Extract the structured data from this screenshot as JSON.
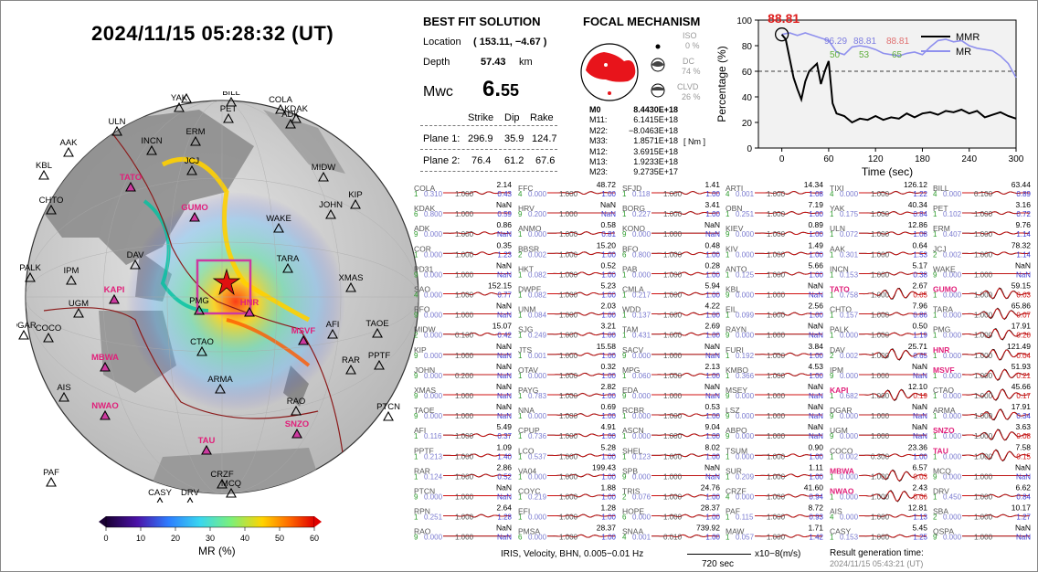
{
  "header": {
    "datetime": "2024/11/15  05:28:32 (UT)"
  },
  "solution": {
    "title": "BEST FIT SOLUTION",
    "location_label": "Location",
    "location_value": "( 153.11, −4.67 )",
    "depth_label": "Depth",
    "depth_value": "57.43",
    "depth_unit": "km",
    "mw_label": "Mwc",
    "mw_int": "6.",
    "mw_dec": "55",
    "table_headers": [
      "Strike",
      "Dip",
      "Rake"
    ],
    "planes": [
      {
        "label": "Plane 1:",
        "strike": "296.9",
        "dip": "35.9",
        "rake": "124.7"
      },
      {
        "label": "Plane 2:",
        "strike": "76.4",
        "dip": "61.2",
        "rake": "67.6"
      }
    ]
  },
  "focal": {
    "title": "FOCAL MECHANISM",
    "iso_label": "ISO",
    "iso_value": "0 %",
    "dc_label": "DC",
    "dc_value": "74 %",
    "clvd_label": "CLVD",
    "clvd_value": "26 %",
    "tensor_labels": [
      "M0",
      "M11:",
      "M22:",
      "M33:",
      "M12:",
      "M13:",
      "M23:"
    ],
    "tensor_values": [
      "8.4430E+18",
      "6.1415E+18",
      "−8.0463E+18",
      "1.8571E+18",
      "3.6915E+18",
      "1.9233E+18",
      "9.2735E+17"
    ],
    "tensor_unit": "[ Nm ]",
    "colors": {
      "beachball": "#e8141b"
    }
  },
  "chart_data": {
    "type": "line",
    "xlabel": "Time (sec)",
    "ylabel": "Percentage (%)",
    "xlim": [
      -30,
      300
    ],
    "ylim": [
      0,
      100
    ],
    "xticks": [
      0,
      60,
      120,
      180,
      240,
      300
    ],
    "yticks": [
      0,
      20,
      40,
      60,
      80,
      100
    ],
    "threshold": 60,
    "peak_label": "88.81",
    "legend": {
      "position": "top-right",
      "entries": [
        "MMR",
        "MR"
      ]
    },
    "annotations": {
      "blue": [
        "96.29",
        "88.81"
      ],
      "red": [
        "88.81"
      ],
      "green": [
        "50",
        "53",
        "65"
      ]
    },
    "series": [
      {
        "name": "MMR",
        "color": "#000000",
        "x": [
          0,
          5,
          10,
          15,
          20,
          25,
          30,
          35,
          40,
          45,
          50,
          55,
          60,
          65,
          70,
          80,
          90,
          100,
          110,
          120,
          130,
          140,
          150,
          160,
          170,
          180,
          190,
          200,
          210,
          220,
          230,
          240,
          250,
          260,
          270,
          280,
          290,
          300
        ],
        "y": [
          88.8,
          85,
          70,
          55,
          46,
          38,
          52,
          60,
          63,
          66,
          50,
          60,
          68,
          35,
          27,
          25,
          20,
          23,
          22,
          25,
          22,
          24,
          23,
          27,
          24,
          27,
          28,
          26,
          29,
          28,
          30,
          27,
          29,
          24,
          26,
          28,
          25,
          23
        ]
      },
      {
        "name": "MR",
        "color": "#8f90ee",
        "x": [
          0,
          10,
          20,
          30,
          40,
          50,
          60,
          70,
          80,
          90,
          100,
          110,
          120,
          130,
          140,
          150,
          160,
          170,
          180,
          190,
          200,
          210,
          220,
          230,
          240,
          250,
          260,
          270,
          280,
          290,
          300
        ],
        "y": [
          88.8,
          90,
          88,
          90,
          88,
          86,
          84,
          75,
          73,
          79,
          80,
          79,
          77,
          74,
          73,
          72,
          74,
          75,
          73,
          79,
          84,
          85,
          83,
          84,
          80,
          78,
          77,
          76,
          72,
          66,
          55
        ]
      }
    ]
  },
  "globe": {
    "stations": [
      "TIXI",
      "BILL",
      "YAK",
      "PET",
      "COLA",
      "ADK",
      "KDAK",
      "ULN",
      "ERM",
      "AAK",
      "INCN",
      "JCJ",
      "KBL",
      "TATO",
      "MIDW",
      "CHTO",
      "GUMO",
      "WAKE",
      "JOHN",
      "KIP",
      "DAV",
      "PALK",
      "IPM",
      "TARA",
      "XMAS",
      "KAPI",
      "UGM",
      "PMG",
      "HNR",
      "DGAR",
      "COCO",
      "TAOE",
      "CTAO",
      "MSVF",
      "AFI",
      "MBWA",
      "RAR",
      "PPTF",
      "ARMA",
      "NWAO",
      "RAO",
      "PTCN",
      "AIS",
      "TAU",
      "SNZO",
      "CRZF",
      "PAF",
      "MCQ",
      "CASY",
      "DRV",
      "MAW",
      "SBA",
      "QSPA"
    ],
    "highlight": [
      "TATO",
      "GUMO",
      "KAPI",
      "HNR",
      "MSVF",
      "MBWA",
      "NWAO",
      "TAU",
      "SNZO"
    ],
    "colorbar_label": "MR (%)",
    "colorbar_ticks": [
      "0",
      "10",
      "20",
      "30",
      "40",
      "50",
      "60"
    ]
  },
  "waveforms": {
    "columns": [
      [
        [
          "COLA",
          "2.14",
          "1",
          "0.310",
          "1.000",
          "0.43"
        ],
        [
          "KDAK",
          "NaN",
          "6",
          "0.800",
          "1.000",
          "0.59"
        ],
        [
          "ADK",
          "0.86",
          "9",
          "0.000",
          "1.000",
          "NaN"
        ],
        [
          "COR",
          "0.35",
          "1",
          "0.000",
          "1.000",
          "1.23"
        ],
        [
          "PD31",
          "NaN",
          "9",
          "0.000",
          "1.000",
          "NaN"
        ],
        [
          "SAO",
          "152.15",
          "4",
          "0.000",
          "1.000",
          "0.77"
        ],
        [
          "PFO",
          "NaN",
          "9",
          "0.000",
          "1.000",
          "NaN"
        ],
        [
          "MIDW",
          "15.07",
          "2",
          "0.000",
          "0.100",
          "0.42"
        ],
        [
          "KIP",
          "NaN",
          "9",
          "0.000",
          "1.000",
          "NaN"
        ],
        [
          "JOHN",
          "NaN",
          "9",
          "0.000",
          "0.200",
          "NaN"
        ],
        [
          "XMAS",
          "NaN",
          "9",
          "0.000",
          "1.000",
          "NaN"
        ],
        [
          "TAOE",
          "NaN",
          "9",
          "0.000",
          "1.000",
          "NaN"
        ],
        [
          "AFI",
          "5.49",
          "1",
          "0.116",
          "1.000",
          "0.37"
        ],
        [
          "PPTF",
          "1.09",
          "1",
          "0.213",
          "1.000",
          "1.40"
        ],
        [
          "RAR",
          "2.86",
          "1",
          "0.124",
          "1.000",
          "0.52"
        ],
        [
          "PTCN",
          "NaN",
          "9",
          "0.000",
          "1.000",
          "NaN"
        ],
        [
          "RPN",
          "2.64",
          "1",
          "0.251",
          "1.000",
          "1.28"
        ],
        [
          "RAO",
          "NaN",
          "9",
          "0.000",
          "1.000",
          "NaN"
        ]
      ],
      [
        [
          "FFC",
          "48.72",
          "4",
          "0.000",
          "1.000",
          "1.00"
        ],
        [
          "HRV",
          "NaN",
          "9",
          "0.200",
          "1.000",
          "NaN"
        ],
        [
          "ANMO",
          "0.58",
          "1",
          "0.000",
          "1.000",
          "0.81"
        ],
        [
          "BBSR",
          "15.20",
          "2",
          "0.002",
          "1.000",
          "1.00"
        ],
        [
          "HKT",
          "0.52",
          "1",
          "0.082",
          "1.000",
          "1.00"
        ],
        [
          "DWPF",
          "5.23",
          "1",
          "0.082",
          "1.000",
          "1.00"
        ],
        [
          "UNM",
          "2.03",
          "1",
          "0.084",
          "1.000",
          "1.00"
        ],
        [
          "SJG",
          "3.21",
          "1",
          "0.249",
          "1.000",
          "1.00"
        ],
        [
          "JTS",
          "15.58",
          "1",
          "0.001",
          "1.000",
          "1.00"
        ],
        [
          "OTAV",
          "0.32",
          "1",
          "0.000",
          "1.000",
          "1.00"
        ],
        [
          "PAYG",
          "2.82",
          "1",
          "0.783",
          "1.000",
          "1.00"
        ],
        [
          "NNA",
          "0.69",
          "1",
          "0.000",
          "1.000",
          "1.00"
        ],
        [
          "CPUP",
          "4.91",
          "1",
          "0.736",
          "1.000",
          "1.00"
        ],
        [
          "LCO",
          "5.28",
          "1",
          "0.537",
          "1.000",
          "1.00"
        ],
        [
          "VA04",
          "199.43",
          "1",
          "0.000",
          "1.000",
          "1.00"
        ],
        [
          "COYC",
          "1.88",
          "1",
          "0.219",
          "1.000",
          "1.00"
        ],
        [
          "EFI",
          "1.28",
          "1",
          "0.000",
          "1.000",
          "1.00"
        ],
        [
          "PMSA",
          "28.37",
          "6",
          "0.000",
          "1.000",
          "1.00"
        ]
      ],
      [
        [
          "SFJD",
          "1.41",
          "1",
          "0.118",
          "1.000",
          "1.00"
        ],
        [
          "BORG",
          "3.41",
          "1",
          "0.227",
          "1.000",
          "1.00"
        ],
        [
          "KONO",
          "NaN",
          "9",
          "0.000",
          "1.000",
          "NaN"
        ],
        [
          "BFO",
          "0.48",
          "6",
          "0.800",
          "1.000",
          "1.00"
        ],
        [
          "PAB",
          "0.28",
          "1",
          "0.000",
          "1.000",
          "1.00"
        ],
        [
          "CMLA",
          "5.94",
          "1",
          "0.217",
          "1.000",
          "1.00"
        ],
        [
          "WDD",
          "4.22",
          "1",
          "0.137",
          "1.000",
          "1.00"
        ],
        [
          "TAM",
          "2.69",
          "1",
          "0.431",
          "1.000",
          "1.00"
        ],
        [
          "SACV",
          "NaN",
          "9",
          "0.000",
          "1.000",
          "NaN"
        ],
        [
          "MPG",
          "2.13",
          "1",
          "0.060",
          "1.000",
          "1.00"
        ],
        [
          "EDA",
          "NaN",
          "9",
          "0.000",
          "1.000",
          "NaN"
        ],
        [
          "RCBR",
          "0.53",
          "1",
          "0.000",
          "1.000",
          "1.00"
        ],
        [
          "ASCN",
          "9.04",
          "1",
          "0.000",
          "1.000",
          "1.00"
        ],
        [
          "SHEL",
          "8.02",
          "1",
          "0.123",
          "1.000",
          "1.00"
        ],
        [
          "SPB",
          "NaN",
          "9",
          "0.000",
          "1.000",
          "NaN"
        ],
        [
          "TRIS",
          "24.76",
          "2",
          "0.076",
          "1.000",
          "1.00"
        ],
        [
          "HOPE",
          "28.37",
          "6",
          "0.000",
          "1.000",
          "1.00"
        ],
        [
          "SNAA",
          "739.92",
          "4",
          "0.001",
          "0.010",
          "1.00"
        ]
      ],
      [
        [
          "ARTI",
          "14.34",
          "4",
          "0.001",
          "1.000",
          "1.08"
        ],
        [
          "OBN",
          "7.19",
          "1",
          "0.251",
          "1.000",
          "1.00"
        ],
        [
          "KIEV",
          "0.89",
          "9",
          "0.000",
          "1.000",
          "1.00"
        ],
        [
          "KIV",
          "1.49",
          "1",
          "0.000",
          "1.000",
          "1.00"
        ],
        [
          "ANTO",
          "5.66",
          "1",
          "0.125",
          "1.000",
          "1.00"
        ],
        [
          "KBL",
          "NaN",
          "9",
          "0.000",
          "1.000",
          "NaN"
        ],
        [
          "EIL",
          "2.56",
          "1",
          "0.099",
          "1.000",
          "1.00"
        ],
        [
          "RAYN",
          "NaN",
          "9",
          "0.000",
          "1.000",
          "NaN"
        ],
        [
          "FURI",
          "3.84",
          "1",
          "0.192",
          "1.000",
          "1.00"
        ],
        [
          "KMBO",
          "4.53",
          "1",
          "0.366",
          "1.000",
          "1.00"
        ],
        [
          "MSEY",
          "NaN",
          "9",
          "0.000",
          "1.000",
          "NaN"
        ],
        [
          "LSZ",
          "NaN",
          "9",
          "0.000",
          "1.000",
          "NaN"
        ],
        [
          "ABPO",
          "NaN",
          "9",
          "0.000",
          "1.000",
          "NaN"
        ],
        [
          "TSUM",
          "0.90",
          "1",
          "0.000",
          "1.000",
          "1.00"
        ],
        [
          "SUR",
          "1.11",
          "1",
          "0.209",
          "1.000",
          "1.00"
        ],
        [
          "CRZF",
          "41.60",
          "4",
          "0.000",
          "1.000",
          "0.94"
        ],
        [
          "PAF",
          "8.72",
          "1",
          "0.115",
          "1.000",
          "0.93"
        ],
        [
          "MAW",
          "1.71",
          "1",
          "0.057",
          "1.000",
          "1.42"
        ]
      ],
      [
        [
          "TIXI",
          "126.12",
          "4",
          "0.000",
          "1.000",
          "1.22"
        ],
        [
          "YAK",
          "40.34",
          "1",
          "0.175",
          "1.000",
          "0.84"
        ],
        [
          "ULN",
          "12.86",
          "1",
          "0.072",
          "1.000",
          "1.08"
        ],
        [
          "AAK",
          "0.64",
          "1",
          "0.301",
          "1.000",
          "1.53"
        ],
        [
          "INCN",
          "5.17",
          "1",
          "0.153",
          "1.000",
          "0.38"
        ],
        [
          "TATO",
          "2.67",
          "1",
          "0.758",
          "1.000",
          "0.05"
        ],
        [
          "CHTO",
          "7.96",
          "1",
          "0.157",
          "1.000",
          "0.86"
        ],
        [
          "PALK",
          "0.50",
          "1",
          "0.000",
          "1.000",
          "1.19"
        ],
        [
          "DAV",
          "25.71",
          "2",
          "0.002",
          "1.000",
          "0.65"
        ],
        [
          "IPM",
          "NaN",
          "9",
          "0.000",
          "1.000",
          "NaN"
        ],
        [
          "KAPI",
          "12.10",
          "1",
          "0.682",
          "1.000",
          "0.19"
        ],
        [
          "DGAR",
          "NaN",
          "9",
          "0.000",
          "1.000",
          "NaN"
        ],
        [
          "UGM",
          "NaN",
          "9",
          "0.000",
          "1.000",
          "NaN"
        ],
        [
          "COCO",
          "23.36",
          "1",
          "0.002",
          "0.300",
          "1.00"
        ],
        [
          "MBWA",
          "6.57",
          "1",
          "0.000",
          "1.000",
          "0.03"
        ],
        [
          "NWAO",
          "2.43",
          "1",
          "0.000",
          "1.000",
          "0.06"
        ],
        [
          "AIS",
          "12.81",
          "4",
          "0.000",
          "1.000",
          "1.13"
        ],
        [
          "CASY",
          "5.45",
          "1",
          "0.153",
          "1.000",
          "1.25"
        ]
      ],
      [
        [
          "BILL",
          "63.44",
          "4",
          "0.000",
          "0.100",
          "0.89"
        ],
        [
          "PET",
          "3.16",
          "1",
          "0.102",
          "1.000",
          "0.72"
        ],
        [
          "ERM",
          "9.76",
          "1",
          "0.407",
          "1.000",
          "1.14"
        ],
        [
          "JCJ",
          "78.32",
          "2",
          "0.002",
          "1.000",
          "1.14"
        ],
        [
          "WAKE",
          "NaN",
          "9",
          "0.000",
          "1.000",
          "NaN"
        ],
        [
          "GUMO",
          "59.15",
          "1",
          "0.000",
          "1.000",
          "0.03"
        ],
        [
          "TARA",
          "65.86",
          "1",
          "0.000",
          "1.000",
          "0.07"
        ],
        [
          "PMG",
          "17.91",
          "1",
          "0.000",
          "1.000",
          "0.20"
        ],
        [
          "HNR",
          "121.49",
          "1",
          "0.000",
          "1.000",
          "0.04"
        ],
        [
          "MSVF",
          "51.93",
          "1",
          "0.000",
          "1.000",
          "0.21"
        ],
        [
          "CTAO",
          "45.66",
          "1",
          "0.000",
          "1.000",
          "0.17"
        ],
        [
          "ARMA",
          "17.91",
          "1",
          "0.000",
          "1.000",
          "0.34"
        ],
        [
          "SNZO",
          "3.63",
          "1",
          "0.000",
          "1.000",
          "0.08"
        ],
        [
          "TAU",
          "7.58",
          "1",
          "0.000",
          "1.000",
          "0.15"
        ],
        [
          "MCQ",
          "NaN",
          "9",
          "0.000",
          "1.000",
          "NaN"
        ],
        [
          "DRV",
          "6.62",
          "1",
          "0.450",
          "1.000",
          "0.84"
        ],
        [
          "SBA",
          "10.17",
          "2",
          "0.000",
          "1.000",
          "1.27"
        ],
        [
          "QSPA",
          "NaN",
          "9",
          "0.000",
          "1.000",
          "NaN"
        ]
      ]
    ],
    "pink_labels": [
      "TATO",
      "GUMO",
      "KAPI",
      "HNR",
      "MSVF",
      "MBWA",
      "NWAO",
      "TAU",
      "SNZO"
    ],
    "strong_traces": [
      "GUMO",
      "TARA",
      "HNR",
      "MSVF",
      "CTAO",
      "KAPI",
      "TATO",
      "MBWA",
      "NWAO",
      "SNZO",
      "TAU",
      "DAV",
      "ARMA",
      "PMG"
    ]
  },
  "footer": {
    "filter": "IRIS, Velocity,   BHN, 0.005−0.01 Hz",
    "scale": "720 sec",
    "unit": "x10−8(m/s)",
    "result_label": "Result generation time:",
    "result_time": "2024/11/15 05:43:21 (UT)"
  }
}
